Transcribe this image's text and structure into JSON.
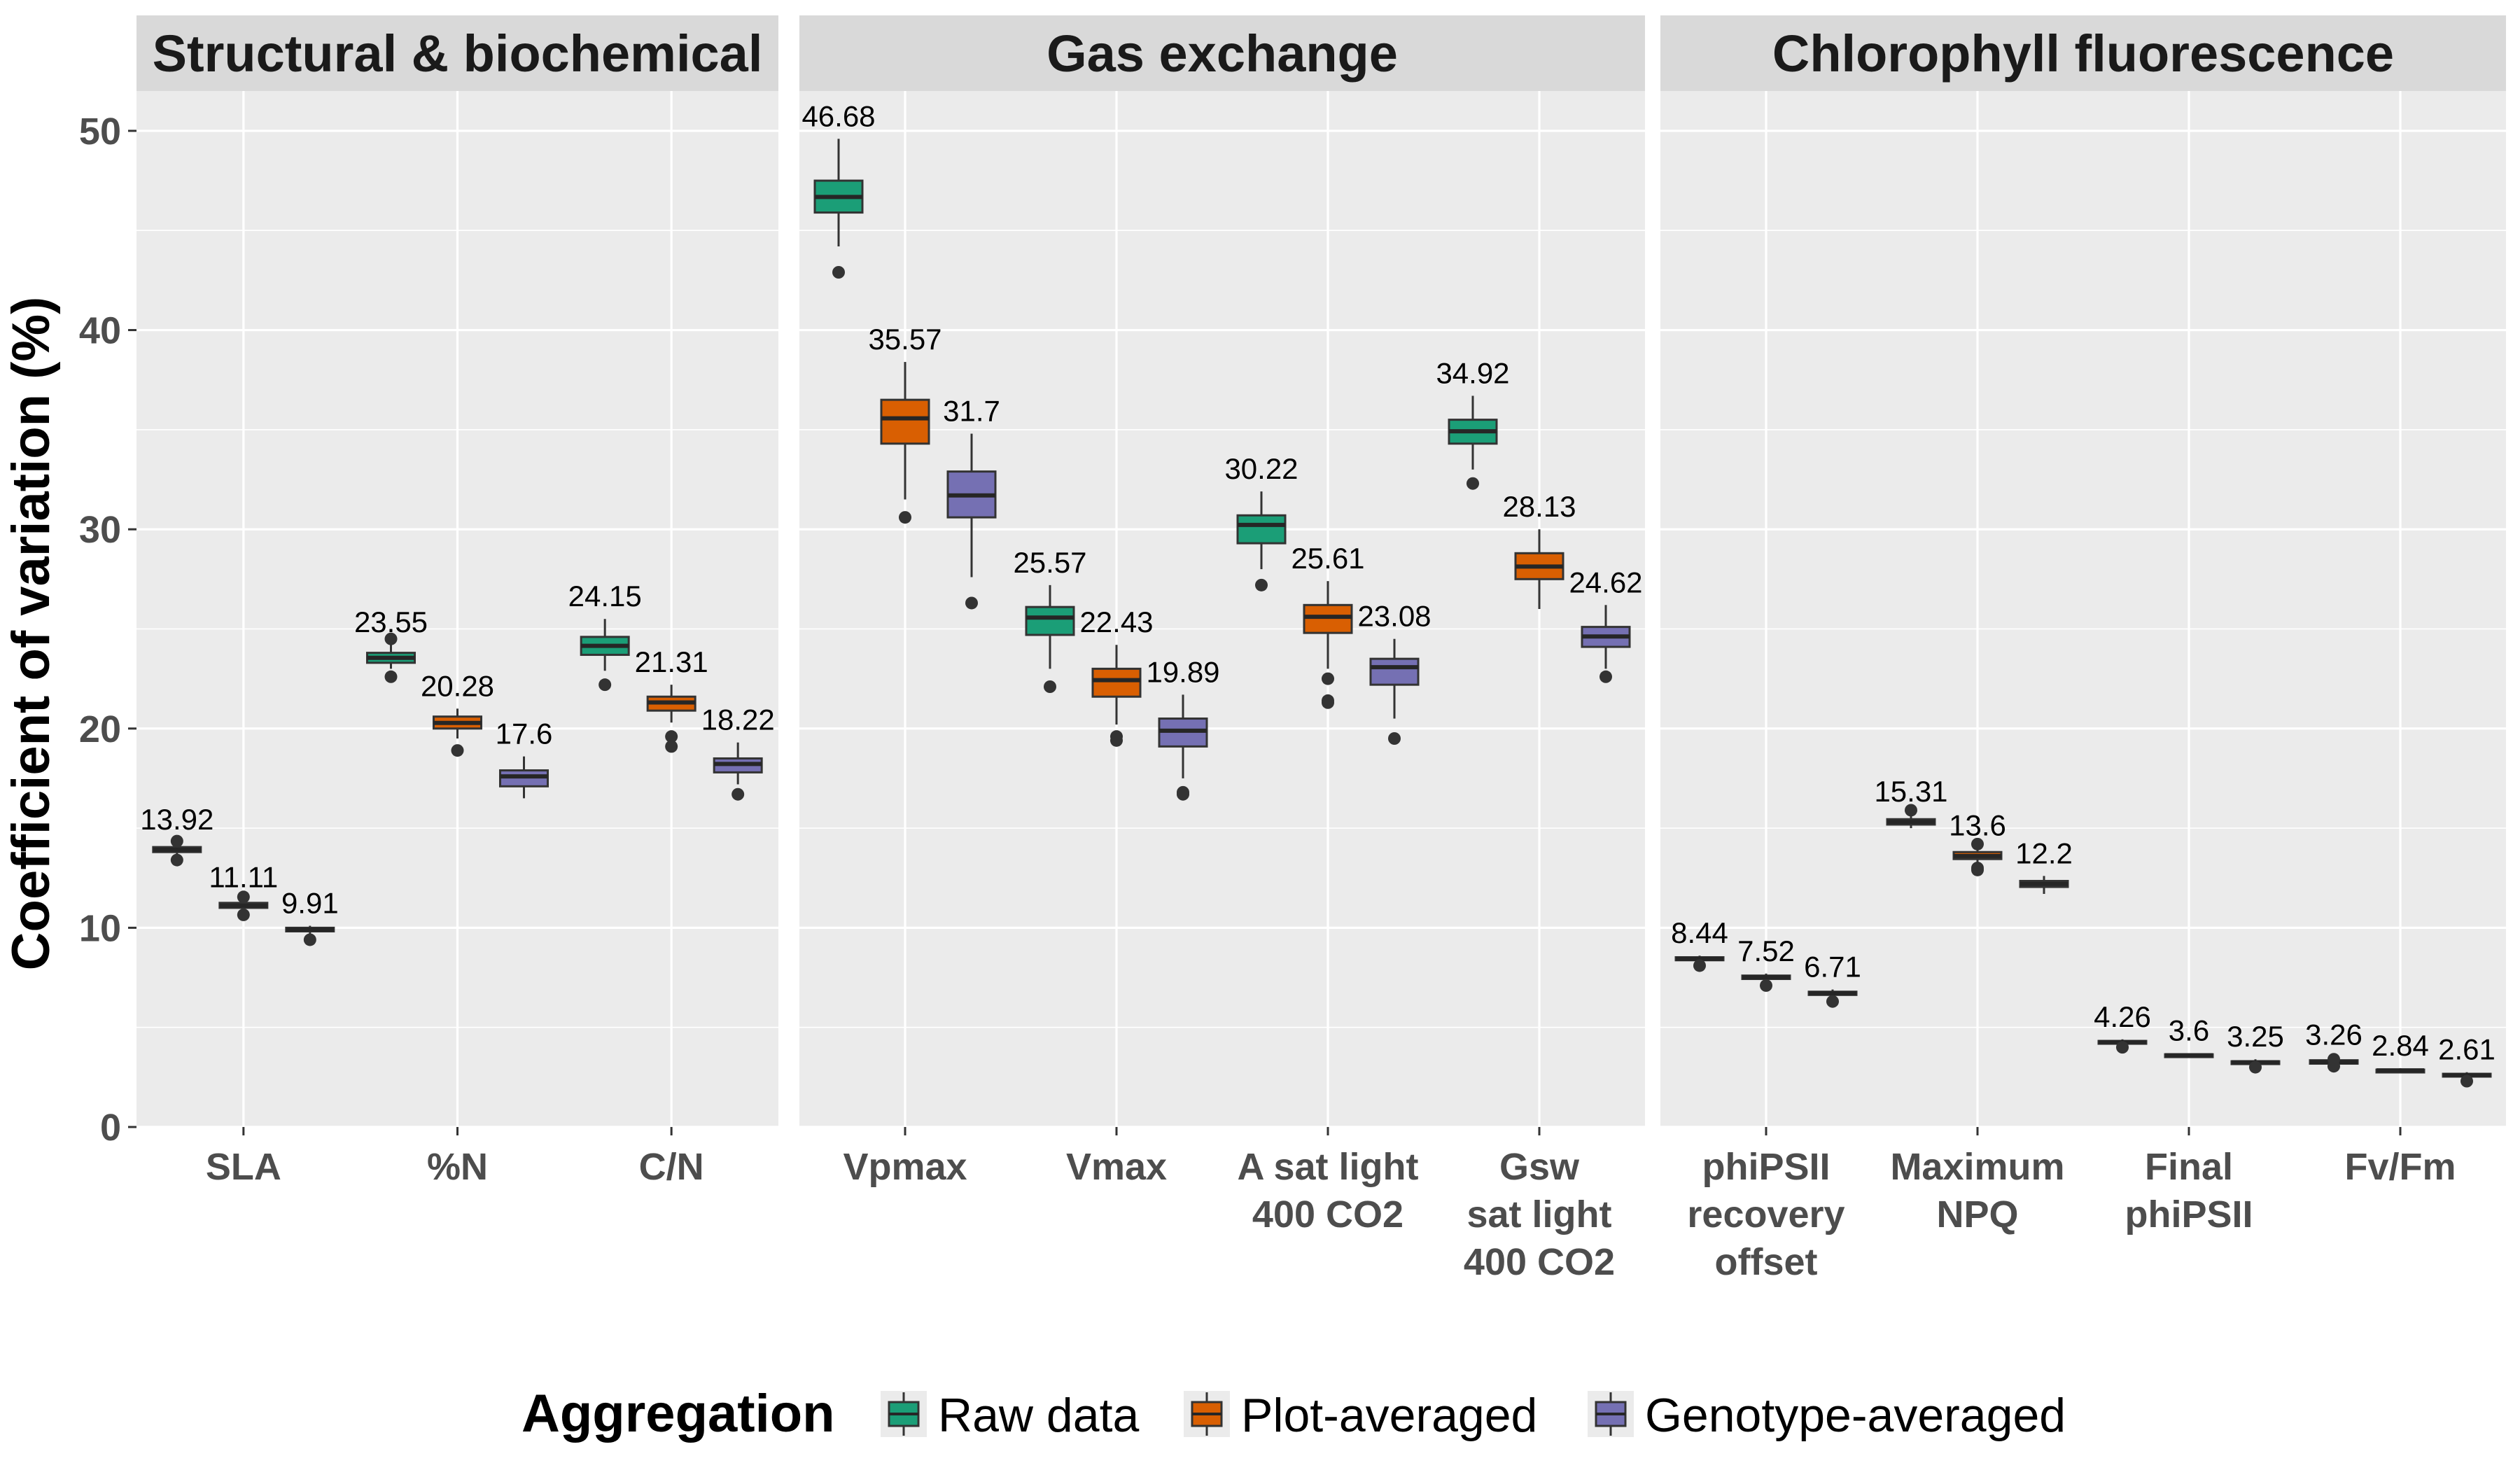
{
  "chart_data": {
    "type": "boxplot",
    "ylabel": "Coefficient of variation (%)",
    "xlabel": "",
    "ylim": [
      0,
      52
    ],
    "yticks": [
      0,
      10,
      20,
      30,
      40,
      50
    ],
    "grid": true,
    "legend": {
      "title": "Aggregation",
      "position": "bottom",
      "entries": [
        {
          "name": "Raw data",
          "color": "#1b9e77"
        },
        {
          "name": "Plot-averaged",
          "color": "#d95f02"
        },
        {
          "name": "Genotype-averaged",
          "color": "#7570b3"
        }
      ]
    },
    "panels": [
      {
        "title": "Structural & biochemical",
        "categories": [
          {
            "label": [
              "SLA"
            ],
            "boxes": [
              {
                "label": "13.92",
                "median": 13.92,
                "q1": 13.8,
                "q3": 14.05,
                "whisker_low": 13.6,
                "whisker_high": 14.3,
                "outliers": [
                  14.35,
                  13.4
                ]
              },
              {
                "label": "11.11",
                "median": 11.11,
                "q1": 11.0,
                "q3": 11.25,
                "whisker_low": 10.85,
                "whisker_high": 11.4,
                "outliers": [
                  11.55,
                  10.65
                ]
              },
              {
                "label": "9.91",
                "median": 9.91,
                "q1": 9.82,
                "q3": 10.0,
                "whisker_low": 9.7,
                "whisker_high": 10.1,
                "outliers": [
                  9.4
                ]
              }
            ]
          },
          {
            "label": [
              "%N"
            ],
            "boxes": [
              {
                "label": "23.55",
                "median": 23.55,
                "q1": 23.3,
                "q3": 23.8,
                "whisker_low": 23.0,
                "whisker_high": 24.2,
                "outliers": [
                  24.5,
                  22.6
                ]
              },
              {
                "label": "20.28",
                "median": 20.28,
                "q1": 20.0,
                "q3": 20.6,
                "whisker_low": 19.5,
                "whisker_high": 21.0,
                "outliers": [
                  18.9
                ]
              },
              {
                "label": "17.6",
                "median": 17.6,
                "q1": 17.1,
                "q3": 17.9,
                "whisker_low": 16.5,
                "whisker_high": 18.6,
                "outliers": []
              }
            ]
          },
          {
            "label": [
              "C/N"
            ],
            "boxes": [
              {
                "label": "24.15",
                "median": 24.15,
                "q1": 23.7,
                "q3": 24.6,
                "whisker_low": 22.9,
                "whisker_high": 25.5,
                "outliers": [
                  22.2
                ]
              },
              {
                "label": "21.31",
                "median": 21.31,
                "q1": 20.9,
                "q3": 21.6,
                "whisker_low": 20.3,
                "whisker_high": 22.2,
                "outliers": [
                  19.6,
                  19.1
                ]
              },
              {
                "label": "18.22",
                "median": 18.22,
                "q1": 17.8,
                "q3": 18.5,
                "whisker_low": 17.2,
                "whisker_high": 19.3,
                "outliers": [
                  16.7
                ]
              }
            ]
          }
        ]
      },
      {
        "title": "Gas exchange",
        "categories": [
          {
            "label": [
              "Vpmax"
            ],
            "boxes": [
              {
                "label": "46.68",
                "median": 46.68,
                "q1": 45.9,
                "q3": 47.5,
                "whisker_low": 44.2,
                "whisker_high": 49.6,
                "outliers": [
                  42.9
                ]
              },
              {
                "label": "35.57",
                "median": 35.57,
                "q1": 34.3,
                "q3": 36.5,
                "whisker_low": 31.5,
                "whisker_high": 38.4,
                "outliers": [
                  30.6
                ]
              },
              {
                "label": "31.7",
                "median": 31.7,
                "q1": 30.6,
                "q3": 32.9,
                "whisker_low": 27.6,
                "whisker_high": 34.8,
                "outliers": [
                  26.3
                ]
              }
            ]
          },
          {
            "label": [
              "Vmax"
            ],
            "boxes": [
              {
                "label": "25.57",
                "median": 25.57,
                "q1": 24.7,
                "q3": 26.1,
                "whisker_low": 23.0,
                "whisker_high": 27.2,
                "outliers": [
                  22.1
                ]
              },
              {
                "label": "22.43",
                "median": 22.43,
                "q1": 21.6,
                "q3": 23.0,
                "whisker_low": 20.2,
                "whisker_high": 24.2,
                "outliers": [
                  19.6,
                  19.4
                ]
              },
              {
                "label": "19.89",
                "median": 19.89,
                "q1": 19.1,
                "q3": 20.5,
                "whisker_low": 17.5,
                "whisker_high": 21.7,
                "outliers": [
                  16.8,
                  16.7
                ]
              }
            ]
          },
          {
            "label": [
              "A sat light",
              "400 CO2"
            ],
            "boxes": [
              {
                "label": "30.22",
                "median": 30.22,
                "q1": 29.3,
                "q3": 30.7,
                "whisker_low": 28.0,
                "whisker_high": 31.9,
                "outliers": [
                  27.2
                ]
              },
              {
                "label": "25.61",
                "median": 25.61,
                "q1": 24.8,
                "q3": 26.2,
                "whisker_low": 23.0,
                "whisker_high": 27.4,
                "outliers": [
                  22.5,
                  21.4,
                  21.3
                ]
              },
              {
                "label": "23.08",
                "median": 23.08,
                "q1": 22.2,
                "q3": 23.5,
                "whisker_low": 20.5,
                "whisker_high": 24.5,
                "outliers": [
                  19.5
                ]
              }
            ]
          },
          {
            "label": [
              "Gsw",
              "sat light",
              "400 CO2"
            ],
            "boxes": [
              {
                "label": "34.92",
                "median": 34.92,
                "q1": 34.3,
                "q3": 35.5,
                "whisker_low": 33.0,
                "whisker_high": 36.7,
                "outliers": [
                  32.3
                ]
              },
              {
                "label": "28.13",
                "median": 28.13,
                "q1": 27.5,
                "q3": 28.8,
                "whisker_low": 26.0,
                "whisker_high": 30.0,
                "outliers": []
              },
              {
                "label": "24.62",
                "median": 24.62,
                "q1": 24.1,
                "q3": 25.1,
                "whisker_low": 23.0,
                "whisker_high": 26.2,
                "outliers": [
                  22.6
                ]
              }
            ]
          }
        ]
      },
      {
        "title": "Chlorophyll fluorescence",
        "categories": [
          {
            "label": [
              "phiPSII",
              "recovery",
              "offset"
            ],
            "boxes": [
              {
                "label": "8.44",
                "median": 8.44,
                "q1": 8.37,
                "q3": 8.52,
                "whisker_low": 8.25,
                "whisker_high": 8.6,
                "outliers": [
                  8.1
                ]
              },
              {
                "label": "7.52",
                "median": 7.52,
                "q1": 7.43,
                "q3": 7.6,
                "whisker_low": 7.3,
                "whisker_high": 7.7,
                "outliers": [
                  7.1
                ]
              },
              {
                "label": "6.71",
                "median": 6.71,
                "q1": 6.63,
                "q3": 6.79,
                "whisker_low": 6.5,
                "whisker_high": 6.9,
                "outliers": [
                  6.3
                ]
              }
            ]
          },
          {
            "label": [
              "Maximum",
              "NPQ"
            ],
            "boxes": [
              {
                "label": "15.31",
                "median": 15.31,
                "q1": 15.18,
                "q3": 15.45,
                "whisker_low": 15.0,
                "whisker_high": 15.7,
                "outliers": [
                  15.9
                ]
              },
              {
                "label": "13.6",
                "median": 13.6,
                "q1": 13.45,
                "q3": 13.8,
                "whisker_low": 13.2,
                "whisker_high": 14.0,
                "outliers": [
                  14.2,
                  13.0,
                  12.9
                ]
              },
              {
                "label": "12.2",
                "median": 12.2,
                "q1": 12.05,
                "q3": 12.35,
                "whisker_low": 11.7,
                "whisker_high": 12.6,
                "outliers": []
              }
            ]
          },
          {
            "label": [
              "Final",
              "phiPSII"
            ],
            "boxes": [
              {
                "label": "4.26",
                "median": 4.26,
                "q1": 4.2,
                "q3": 4.32,
                "whisker_low": 4.1,
                "whisker_high": 4.4,
                "outliers": [
                  4.0
                ]
              },
              {
                "label": "3.6",
                "median": 3.6,
                "q1": 3.55,
                "q3": 3.65,
                "whisker_low": 3.5,
                "whisker_high": 3.7,
                "outliers": []
              },
              {
                "label": "3.25",
                "median": 3.25,
                "q1": 3.2,
                "q3": 3.3,
                "whisker_low": 3.1,
                "whisker_high": 3.4,
                "outliers": [
                  3.0
                ]
              }
            ]
          },
          {
            "label": [
              "Fv/Fm"
            ],
            "boxes": [
              {
                "label": "3.26",
                "median": 3.26,
                "q1": 3.18,
                "q3": 3.35,
                "whisker_low": 3.05,
                "whisker_high": 3.5,
                "outliers": [
                  3.05,
                  3.4
                ]
              },
              {
                "label": "2.84",
                "median": 2.84,
                "q1": 2.8,
                "q3": 2.88,
                "whisker_low": 2.75,
                "whisker_high": 2.95,
                "outliers": []
              },
              {
                "label": "2.61",
                "median": 2.61,
                "q1": 2.55,
                "q3": 2.67,
                "whisker_low": 2.45,
                "whisker_high": 2.75,
                "outliers": [
                  2.3
                ]
              }
            ]
          }
        ]
      }
    ]
  }
}
